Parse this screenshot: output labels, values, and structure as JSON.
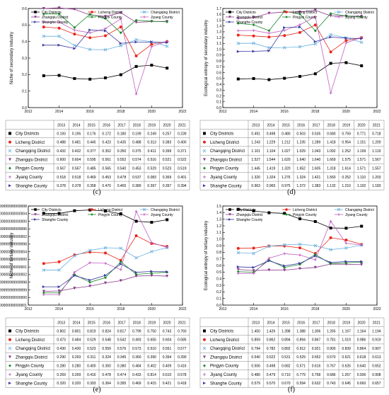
{
  "chart_data": [
    {
      "type": "line",
      "panel_label": "(c)",
      "ylabel": "Niche of secondary industry",
      "ylim": [
        0,
        0.6
      ],
      "yticks": [
        0.0,
        0.1,
        0.2,
        0.3,
        0.4,
        0.5,
        0.6
      ],
      "xlim": [
        2012,
        2022
      ],
      "xticks": [
        2012,
        2014,
        2016,
        2018,
        2020,
        2022
      ],
      "years": [
        2013,
        2014,
        2015,
        2016,
        2017,
        2018,
        2019,
        2020,
        2021
      ],
      "legend_position": "top",
      "series": [
        {
          "name": "City Districts",
          "color": "#000000",
          "marker": "square",
          "values": [
            0.193,
            0.195,
            0.176,
            0.172,
            0.18,
            0.199,
            0.249,
            0.257,
            0.239
          ]
        },
        {
          "name": "Licheng District",
          "color": "#e8261c",
          "marker": "circle",
          "values": [
            0.488,
            0.481,
            0.445,
            0.423,
            0.435,
            0.488,
            0.313,
            0.383,
            0.4
          ]
        },
        {
          "name": "Changqing District",
          "color": "#6ab0e0",
          "marker": "x",
          "values": [
            0.432,
            0.432,
            0.377,
            0.352,
            0.35,
            0.375,
            0.411,
            0.399,
            0.371
          ]
        },
        {
          "name": "Zhangqiu District",
          "color": "#8a3a8a",
          "marker": "triangle-down",
          "values": [
            0.6,
            0.604,
            0.595,
            0.561,
            0.552,
            0.574,
            0.516,
            0.521,
            0.522
          ]
        },
        {
          "name": "Pingyin County",
          "color": "#1a8a2a",
          "marker": "diamond",
          "values": [
            0.567,
            0.567,
            0.485,
            0.565,
            0.54,
            0.453,
            0.529,
            0.523,
            0.519
          ]
        },
        {
          "name": "Jiyang County",
          "color": "#c060c0",
          "marker": "plus",
          "values": [
            0.518,
            0.518,
            0.469,
            0.453,
            0.478,
            0.537,
            0.083,
            0.369,
            0.401
          ]
        },
        {
          "name": "Shanghe County",
          "color": "#3a3aa0",
          "marker": "triangle-right",
          "values": [
            0.378,
            0.378,
            0.358,
            0.47,
            0.465,
            0.389,
            0.397,
            0.397,
            0.394
          ]
        }
      ]
    },
    {
      "type": "line",
      "panel_label": "(d)",
      "ylabel": "Ecological entropy of secondary industry",
      "ylim": [
        0,
        1.7
      ],
      "yticks": [
        0.0,
        0.1,
        0.2,
        0.3,
        0.4,
        0.5,
        0.6,
        0.7,
        0.8,
        0.9,
        1.0,
        1.1,
        1.2,
        1.3,
        1.4,
        1.5,
        1.6,
        1.7
      ],
      "xlim": [
        2012,
        2022
      ],
      "xticks": [
        2012,
        2014,
        2016,
        2018,
        2020,
        2022
      ],
      "years": [
        2013,
        2014,
        2015,
        2016,
        2017,
        2018,
        2019,
        2020,
        2021
      ],
      "legend_position": "top",
      "series": [
        {
          "name": "City Districts",
          "color": "#000000",
          "marker": "square",
          "values": [
            0.491,
            0.498,
            0.48,
            0.503,
            0.535,
            0.58,
            0.759,
            0.771,
            0.718
          ]
        },
        {
          "name": "Licheng District",
          "color": "#e8261c",
          "marker": "circle",
          "values": [
            1.243,
            1.229,
            1.212,
            1.235,
            1.289,
            1.418,
            0.954,
            1.151,
            1.2
          ]
        },
        {
          "name": "Changqing District",
          "color": "#6ab0e0",
          "marker": "x",
          "values": [
            1.101,
            1.104,
            1.027,
            1.029,
            1.043,
            1.092,
            1.252,
            1.199,
            1.119
          ]
        },
        {
          "name": "Zhangqiu District",
          "color": "#8a3a8a",
          "marker": "triangle-down",
          "values": [
            1.527,
            1.544,
            1.62,
            1.64,
            1.64,
            1.669,
            1.575,
            1.571,
            1.567
          ]
        },
        {
          "name": "Pingyin County",
          "color": "#1a8a2a",
          "marker": "diamond",
          "values": [
            1.445,
            1.419,
            1.32,
            1.652,
            1.605,
            1.318,
            1.614,
            1.571,
            1.557
          ]
        },
        {
          "name": "Jiyang County",
          "color": "#c060c0",
          "marker": "plus",
          "values": [
            1.32,
            1.324,
            1.276,
            1.324,
            1.421,
            1.56,
            0.252,
            1.11,
            1.203
          ]
        },
        {
          "name": "Shanghe County",
          "color": "#3a3aa0",
          "marker": "triangle-right",
          "values": [
            0.963,
            0.965,
            0.975,
            1.372,
            1.383,
            1.132,
            1.21,
            1.192,
            1.183
          ]
        }
      ]
    },
    {
      "type": "line",
      "panel_label": "(e)",
      "ylabel": "Niche of tertiary industry",
      "ylim": [
        0.2,
        0.85
      ],
      "yticks": [
        0.2,
        0.25,
        0.3,
        0.35,
        0.4,
        0.45,
        0.5,
        0.55,
        0.6,
        0.65,
        0.7,
        0.75,
        0.8,
        0.85
      ],
      "xlim": [
        2012,
        2022
      ],
      "xticks": [
        2012,
        2014,
        2016,
        2018,
        2020,
        2022
      ],
      "years": [
        2013,
        2014,
        2015,
        2016,
        2017,
        2018,
        2019,
        2020,
        2021
      ],
      "legend_position": "top",
      "series": [
        {
          "name": "City Districts",
          "color": "#000000",
          "marker": "square",
          "values": [
            0.802,
            0.801,
            0.819,
            0.824,
            0.817,
            0.799,
            0.75,
            0.743,
            0.76
          ]
        },
        {
          "name": "Licheng District",
          "color": "#e8261c",
          "marker": "circle",
          "values": [
            0.473,
            0.484,
            0.529,
            0.548,
            0.542,
            0.493,
            0.655,
            0.604,
            0.585
          ]
        },
        {
          "name": "Changqing District",
          "color": "#6ab0e0",
          "marker": "x",
          "values": [
            0.43,
            0.43,
            0.523,
            0.559,
            0.576,
            0.573,
            0.51,
            0.551,
            0.577
          ]
        },
        {
          "name": "Zhangqiu District",
          "color": "#8a3a8a",
          "marker": "triangle-down",
          "values": [
            0.29,
            0.293,
            0.311,
            0.324,
            0.345,
            0.36,
            0.39,
            0.394,
            0.39
          ]
        },
        {
          "name": "Pingyin County",
          "color": "#1a8a2a",
          "marker": "diamond",
          "values": [
            0.28,
            0.28,
            0.4,
            0.35,
            0.38,
            0.484,
            0.402,
            0.409,
            0.416
          ]
        },
        {
          "name": "Jiyang County",
          "color": "#c060c0",
          "marker": "plus",
          "values": [
            0.269,
            0.269,
            0.416,
            0.478,
            0.474,
            0.433,
            0.814,
            0.61,
            0.578
          ]
        },
        {
          "name": "Shanghe County",
          "color": "#3a3aa0",
          "marker": "triangle-right",
          "values": [
            0.32,
            0.32,
            0.393,
            0.364,
            0.395,
            0.469,
            0.415,
            0.421,
            0.418
          ]
        }
      ]
    },
    {
      "type": "line",
      "panel_label": "(f)",
      "ylabel": "Ecological entropy of tertiary industry",
      "ylim": [
        0,
        1.5
      ],
      "yticks": [
        0.0,
        0.1,
        0.2,
        0.3,
        0.4,
        0.5,
        0.6,
        0.7,
        0.8,
        0.9,
        1.0,
        1.1,
        1.2,
        1.3,
        1.4,
        1.5
      ],
      "xlim": [
        2012,
        2022
      ],
      "xticks": [
        2012,
        2014,
        2016,
        2018,
        2020,
        2022
      ],
      "years": [
        2013,
        2014,
        2015,
        2016,
        2017,
        2018,
        2019,
        2020,
        2021
      ],
      "legend_position": "top",
      "series": [
        {
          "name": "City Districts",
          "color": "#000000",
          "marker": "square",
          "values": [
            1.45,
            1.426,
            1.398,
            1.388,
            1.306,
            1.265,
            1.167,
            1.164,
            1.194
          ]
        },
        {
          "name": "Licheng District",
          "color": "#e8261c",
          "marker": "circle",
          "values": [
            0.859,
            0.862,
            0.894,
            0.894,
            0.867,
            0.781,
            1.019,
            0.986,
            0.919
          ]
        },
        {
          "name": "Changqing District",
          "color": "#6ab0e0",
          "marker": "x",
          "values": [
            0.794,
            0.782,
            0.892,
            0.912,
            0.921,
            0.9,
            0.839,
            0.864,
            0.907
          ]
        },
        {
          "name": "Zhangqiu District",
          "color": "#8a3a8a",
          "marker": "triangle-down",
          "values": [
            0.54,
            0.522,
            0.531,
            0.529,
            0.552,
            0.57,
            0.621,
            0.618,
            0.613
          ]
        },
        {
          "name": "Pingyin County",
          "color": "#1a8a2a",
          "marker": "diamond",
          "values": [
            0.506,
            0.498,
            0.682,
            0.571,
            0.616,
            0.767,
            0.626,
            0.64,
            0.652
          ]
        },
        {
          "name": "Jiyang County",
          "color": "#c060c0",
          "marker": "plus",
          "values": [
            0.48,
            0.479,
            0.71,
            0.779,
            0.758,
            0.686,
            1.267,
            0.936,
            0.908
          ]
        },
        {
          "name": "Shanghe County",
          "color": "#3a3aa0",
          "marker": "triangle-right",
          "values": [
            0.579,
            0.57,
            0.67,
            0.594,
            0.632,
            0.743,
            0.645,
            0.66,
            0.657
          ]
        }
      ]
    }
  ]
}
